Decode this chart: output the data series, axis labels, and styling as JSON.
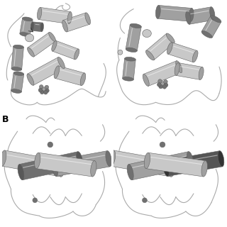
{
  "background_color": "#ffffff",
  "label_B": "B",
  "fig_width": 3.2,
  "fig_height": 3.2,
  "dpi": 100,
  "helix_color_light": "#c8c8c8",
  "helix_color_mid": "#a0a0a0",
  "helix_color_dark": "#707070",
  "helix_color_darker": "#585858",
  "loop_color": "#aaaaaa",
  "ligand_color": "#909090",
  "edge_color": "#606060",
  "label_fontsize": 9,
  "label_fontweight": "bold"
}
